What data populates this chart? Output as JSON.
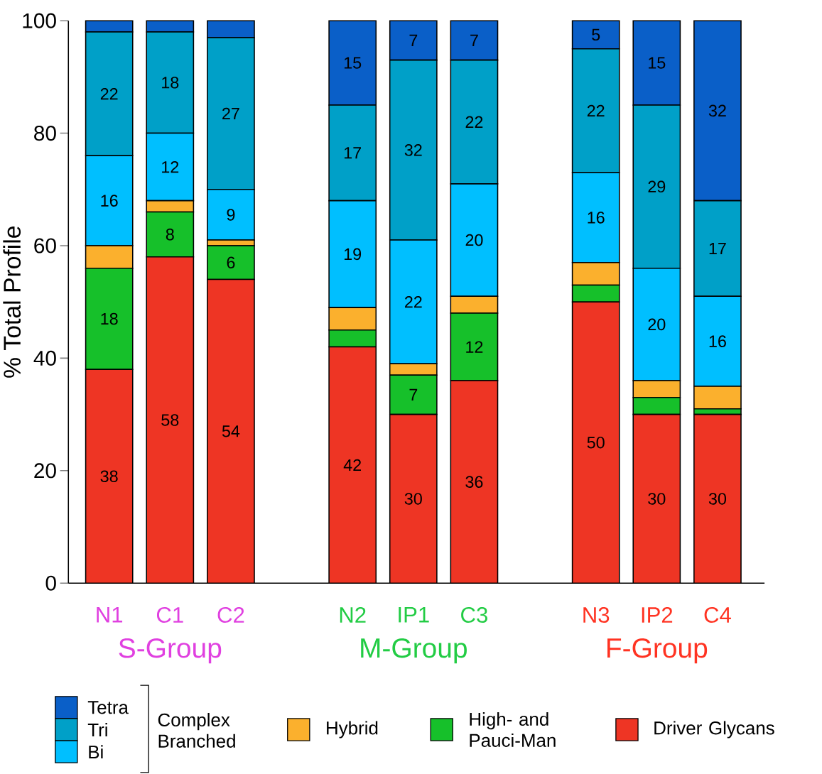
{
  "chart_data": {
    "type": "bar",
    "stacked": true,
    "ylabel": "% Total Profile",
    "categories": [
      "N1",
      "C1",
      "C2",
      null,
      "N2",
      "IP1",
      "C3",
      null,
      "N3",
      "IP2",
      "C4"
    ],
    "ylim": [
      0,
      100
    ],
    "yticks": [
      0,
      20,
      40,
      60,
      80,
      100
    ],
    "legend": "bottom",
    "annotations": [
      "S-Group",
      "M-Group",
      "F-Group",
      "Complex Branched"
    ],
    "series": [
      {
        "name": "Driver Glycans",
        "color": "#ee3524",
        "values": [
          38,
          58,
          54,
          null,
          42,
          30,
          36,
          null,
          50,
          30,
          30
        ],
        "value_labels": [
          "38",
          "58",
          "54",
          null,
          "42",
          "30",
          "36",
          null,
          "50",
          "30",
          "30"
        ]
      },
      {
        "name": "High- and Pauci-Man",
        "color": "#16c02a",
        "values": [
          18,
          8,
          6,
          null,
          3,
          7,
          12,
          null,
          3,
          3,
          1
        ],
        "value_labels": [
          "18",
          "8",
          "6",
          null,
          null,
          "7",
          "12",
          null,
          null,
          null,
          null
        ]
      },
      {
        "name": "Hybrid",
        "color": "#fbb02d",
        "values": [
          4,
          2,
          1,
          null,
          4,
          2,
          3,
          null,
          4,
          3,
          4
        ],
        "value_labels": [
          null,
          null,
          null,
          null,
          null,
          null,
          null,
          null,
          null,
          null,
          null
        ]
      },
      {
        "name": "Bi",
        "color": "#00bfff",
        "values": [
          16,
          12,
          9,
          null,
          19,
          22,
          20,
          null,
          16,
          20,
          16
        ],
        "value_labels": [
          "16",
          "12",
          "9",
          null,
          "19",
          "22",
          "20",
          null,
          "16",
          "20",
          "16"
        ]
      },
      {
        "name": "Tri",
        "color": "#00a0c8",
        "values": [
          22,
          18,
          27,
          null,
          17,
          32,
          22,
          null,
          22,
          29,
          17
        ],
        "value_labels": [
          "22",
          "18",
          "27",
          null,
          "17",
          "32",
          "22",
          null,
          "22",
          "29",
          "17"
        ]
      },
      {
        "name": "Tetra",
        "color": "#0a5fc8",
        "values": [
          2,
          2,
          3,
          null,
          15,
          7,
          7,
          null,
          5,
          15,
          32
        ],
        "value_labels": [
          null,
          null,
          null,
          null,
          "15",
          "7",
          "7",
          null,
          "5",
          "15",
          "32"
        ]
      }
    ]
  }
}
